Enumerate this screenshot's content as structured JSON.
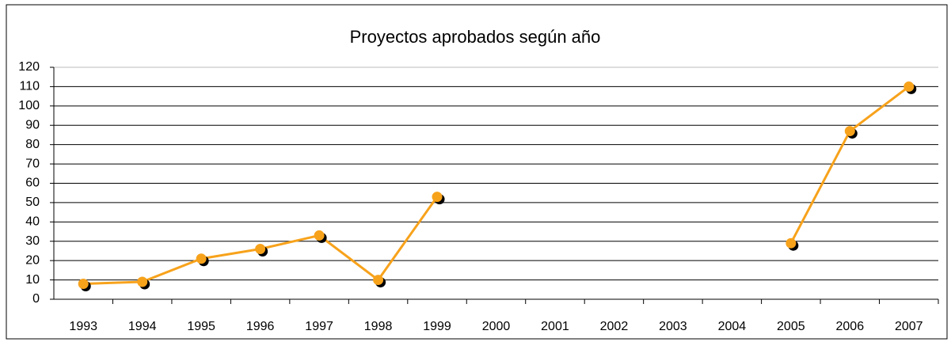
{
  "chart_data": {
    "type": "line",
    "title": "Proyectos aprobados según año",
    "categories": [
      "1993",
      "1994",
      "1995",
      "1996",
      "1997",
      "1998",
      "1999",
      "2000",
      "2001",
      "2002",
      "2003",
      "2004",
      "2005",
      "2006",
      "2007"
    ],
    "series": [
      {
        "color": "#f7a21b",
        "values": [
          8,
          9,
          21,
          26,
          33,
          10,
          53,
          null,
          null,
          null,
          null,
          null,
          29,
          87,
          110
        ]
      }
    ],
    "ylim": [
      0,
      120
    ],
    "yticks": [
      0,
      10,
      20,
      30,
      40,
      50,
      60,
      70,
      80,
      90,
      100,
      110,
      120
    ],
    "grid": true
  }
}
